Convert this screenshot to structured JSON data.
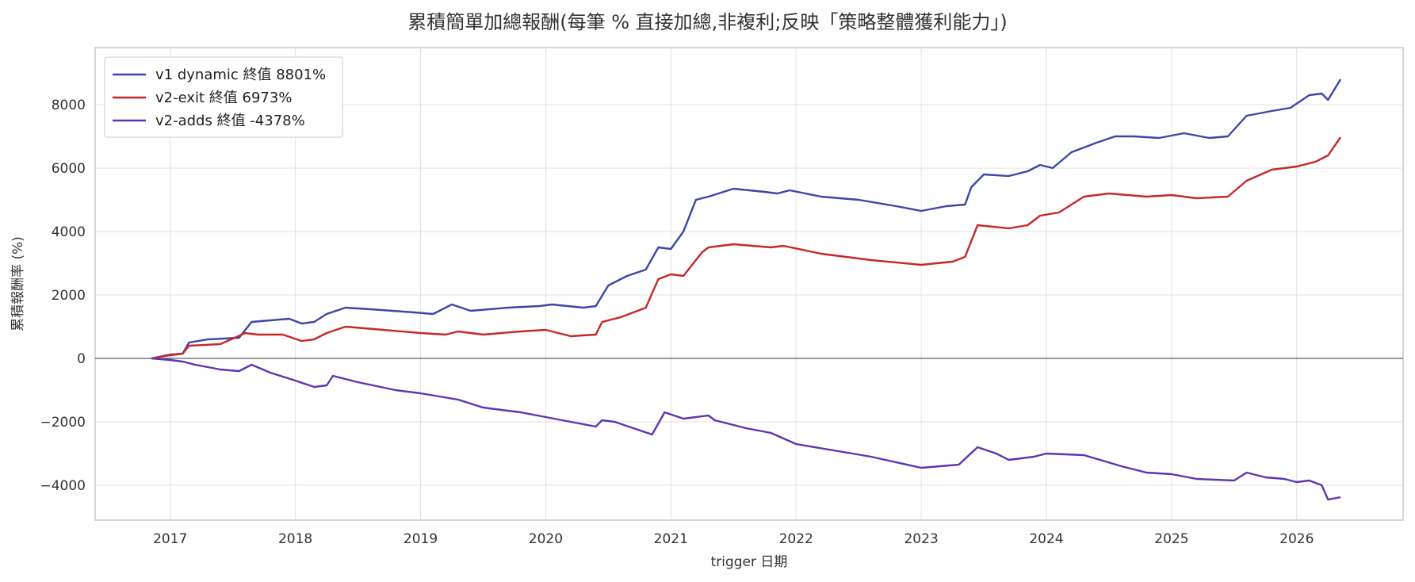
{
  "chart_data": {
    "type": "line",
    "title": "累積簡單加總報酬(每筆 % 直接加總,非複利;反映「策略整體獲利能力」)",
    "xlabel": "trigger 日期",
    "ylabel": "累積報酬率 (%)",
    "xlim": [
      2016.4,
      2026.85
    ],
    "ylim": [
      -5100,
      9800
    ],
    "x_ticks": [
      2017,
      2018,
      2019,
      2020,
      2021,
      2022,
      2023,
      2024,
      2025,
      2026
    ],
    "y_ticks": [
      -4000,
      -2000,
      0,
      2000,
      4000,
      6000,
      8000
    ],
    "grid": true,
    "legend_position": "top-left",
    "series": [
      {
        "name": "v1 dynamic 終值 8801%",
        "color": "#3a47a8",
        "x": [
          2016.85,
          2017.0,
          2017.1,
          2017.15,
          2017.3,
          2017.55,
          2017.65,
          2017.95,
          2018.05,
          2018.15,
          2018.25,
          2018.4,
          2018.6,
          2018.95,
          2019.1,
          2019.25,
          2019.4,
          2019.7,
          2019.95,
          2020.05,
          2020.3,
          2020.4,
          2020.5,
          2020.65,
          2020.8,
          2020.9,
          2021.0,
          2021.1,
          2021.2,
          2021.3,
          2021.5,
          2021.75,
          2021.85,
          2021.95,
          2022.2,
          2022.5,
          2022.8,
          2023.0,
          2023.2,
          2023.35,
          2023.4,
          2023.5,
          2023.7,
          2023.85,
          2023.95,
          2024.05,
          2024.2,
          2024.4,
          2024.55,
          2024.7,
          2024.9,
          2025.1,
          2025.3,
          2025.45,
          2025.6,
          2025.8,
          2025.95,
          2026.1,
          2026.2,
          2026.25,
          2026.35
        ],
        "y": [
          0,
          120,
          150,
          500,
          600,
          650,
          1150,
          1250,
          1100,
          1150,
          1400,
          1600,
          1550,
          1450,
          1400,
          1700,
          1500,
          1600,
          1650,
          1700,
          1600,
          1650,
          2300,
          2600,
          2800,
          3500,
          3450,
          4000,
          5000,
          5100,
          5350,
          5250,
          5200,
          5300,
          5100,
          5000,
          4800,
          4650,
          4800,
          4850,
          5400,
          5800,
          5750,
          5900,
          6100,
          6000,
          6500,
          6800,
          7000,
          7000,
          6950,
          7100,
          6950,
          7000,
          7650,
          7800,
          7900,
          8300,
          8350,
          8150,
          8801
        ]
      },
      {
        "name": "v2-exit 終值 6973%",
        "color": "#c62828",
        "x": [
          2016.85,
          2017.0,
          2017.1,
          2017.15,
          2017.4,
          2017.6,
          2017.7,
          2017.9,
          2018.05,
          2018.15,
          2018.25,
          2018.4,
          2018.7,
          2019.0,
          2019.2,
          2019.3,
          2019.5,
          2019.8,
          2020.0,
          2020.2,
          2020.4,
          2020.45,
          2020.6,
          2020.8,
          2020.9,
          2021.0,
          2021.1,
          2021.25,
          2021.3,
          2021.5,
          2021.8,
          2021.9,
          2022.2,
          2022.6,
          2023.0,
          2023.25,
          2023.35,
          2023.45,
          2023.7,
          2023.85,
          2023.95,
          2024.1,
          2024.3,
          2024.5,
          2024.8,
          2025.0,
          2025.2,
          2025.45,
          2025.6,
          2025.8,
          2026.0,
          2026.15,
          2026.25,
          2026.35
        ],
        "y": [
          0,
          100,
          150,
          400,
          450,
          800,
          750,
          750,
          550,
          600,
          800,
          1000,
          900,
          800,
          750,
          850,
          750,
          850,
          900,
          700,
          750,
          1150,
          1300,
          1600,
          2500,
          2650,
          2600,
          3350,
          3500,
          3600,
          3500,
          3550,
          3300,
          3100,
          2950,
          3050,
          3200,
          4200,
          4100,
          4200,
          4500,
          4600,
          5100,
          5200,
          5100,
          5150,
          5050,
          5100,
          5600,
          5950,
          6050,
          6200,
          6400,
          6973
        ]
      },
      {
        "name": "v2-adds 終值 -4378%",
        "color": "#5e35b1",
        "x": [
          2016.85,
          2017.0,
          2017.1,
          2017.2,
          2017.4,
          2017.55,
          2017.65,
          2017.8,
          2018.0,
          2018.15,
          2018.25,
          2018.3,
          2018.5,
          2018.8,
          2019.0,
          2019.3,
          2019.5,
          2019.8,
          2020.0,
          2020.2,
          2020.4,
          2020.45,
          2020.55,
          2020.7,
          2020.85,
          2020.95,
          2021.1,
          2021.3,
          2021.35,
          2021.6,
          2021.8,
          2022.0,
          2022.3,
          2022.6,
          2023.0,
          2023.3,
          2023.45,
          2023.6,
          2023.7,
          2023.9,
          2024.0,
          2024.3,
          2024.6,
          2024.8,
          2025.0,
          2025.2,
          2025.5,
          2025.6,
          2025.75,
          2025.9,
          2026.0,
          2026.1,
          2026.2,
          2026.25,
          2026.35
        ],
        "y": [
          0,
          -50,
          -100,
          -200,
          -350,
          -400,
          -200,
          -450,
          -700,
          -900,
          -850,
          -550,
          -750,
          -1000,
          -1100,
          -1300,
          -1550,
          -1700,
          -1850,
          -2000,
          -2150,
          -1950,
          -2000,
          -2200,
          -2400,
          -1700,
          -1900,
          -1800,
          -1950,
          -2200,
          -2350,
          -2700,
          -2900,
          -3100,
          -3450,
          -3350,
          -2800,
          -3000,
          -3200,
          -3100,
          -3000,
          -3050,
          -3400,
          -3600,
          -3650,
          -3800,
          -3850,
          -3600,
          -3750,
          -3800,
          -3900,
          -3850,
          -4000,
          -4450,
          -4378
        ]
      }
    ]
  }
}
